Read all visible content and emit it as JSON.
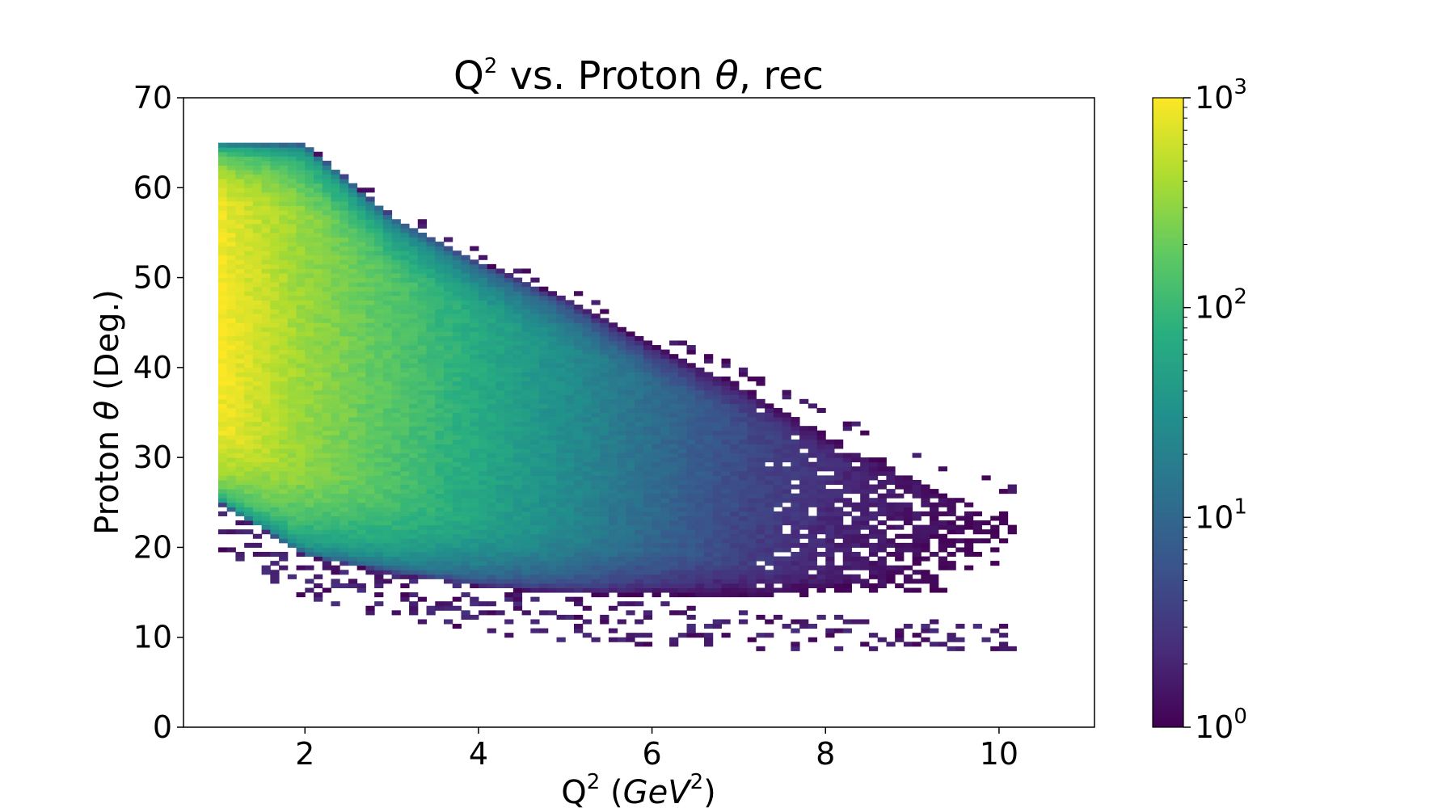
{
  "chart_data": {
    "type": "heatmap",
    "title": {
      "pre": "Q",
      "sup": "2",
      "mid": " vs. Proton ",
      "greek": "θ",
      "post": ", rec"
    },
    "xlabel": {
      "pre": "Q",
      "sup": "2",
      "open": " (",
      "unit": "GeV",
      "unit_sup": "2",
      "close": ")"
    },
    "ylabel": {
      "pre": "Proton ",
      "greek": "θ",
      "post": " (Deg.)"
    },
    "xlim": [
      0.6,
      11.1
    ],
    "ylim": [
      0,
      70
    ],
    "x_ticks": [
      2,
      4,
      6,
      8,
      10
    ],
    "y_ticks": [
      0,
      10,
      20,
      30,
      40,
      50,
      60,
      70
    ],
    "grid": false,
    "colorbar": {
      "scale": "log",
      "min": 1,
      "max": 1000,
      "colormap": "viridis",
      "ticks": [
        {
          "value": 1,
          "base": "10",
          "exp": "0"
        },
        {
          "value": 10,
          "base": "10",
          "exp": "1"
        },
        {
          "value": 100,
          "base": "10",
          "exp": "2"
        },
        {
          "value": 1000,
          "base": "10",
          "exp": "3"
        }
      ]
    },
    "binning": {
      "x_start": 1.0,
      "x_step": 0.1,
      "x_count": 92,
      "y_start": 8.5,
      "y_step": 0.5,
      "y_count": 114
    },
    "density_model": {
      "upper_edge": [
        [
          1.0,
          65.0
        ],
        [
          2.0,
          65.0
        ],
        [
          2.5,
          61.0
        ],
        [
          3.0,
          57.0
        ],
        [
          4.0,
          52.0
        ],
        [
          5.0,
          48.0
        ],
        [
          6.0,
          43.0
        ],
        [
          7.0,
          39.0
        ],
        [
          8.0,
          34.0
        ],
        [
          9.0,
          30.0
        ],
        [
          10.0,
          26.0
        ]
      ],
      "lower_edge": [
        [
          1.0,
          25.0
        ],
        [
          2.0,
          19.0
        ],
        [
          3.0,
          17.0
        ],
        [
          4.0,
          15.5
        ],
        [
          5.0,
          14.5
        ],
        [
          6.0,
          14.0
        ],
        [
          7.0,
          13.0
        ],
        [
          8.0,
          12.5
        ],
        [
          9.0,
          12.0
        ],
        [
          10.0,
          11.5
        ]
      ],
      "peak": [
        [
          1.0,
          1000
        ],
        [
          2.0,
          350
        ],
        [
          3.0,
          160
        ],
        [
          4.0,
          70
        ],
        [
          5.0,
          30
        ],
        [
          6.0,
          12
        ],
        [
          7.0,
          5
        ],
        [
          8.0,
          2.5
        ],
        [
          9.0,
          1.5
        ],
        [
          10.0,
          1.0
        ]
      ],
      "ridge_y": 45,
      "sparse_from_x": 7.0
    }
  }
}
